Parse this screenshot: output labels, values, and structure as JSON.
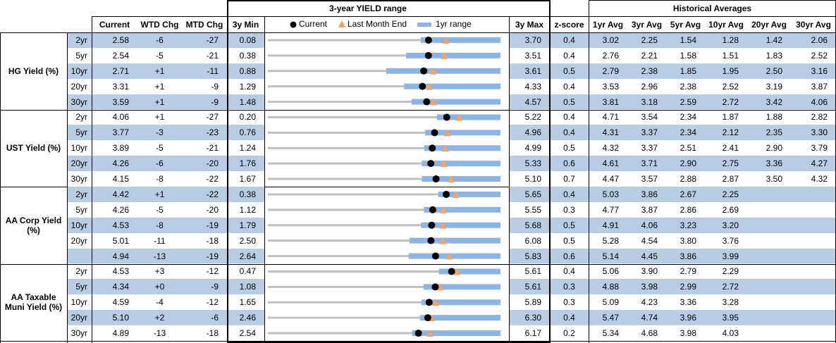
{
  "header": {
    "range_title": "3-year YIELD range",
    "hist_title": "Historical Averages",
    "columns": {
      "current": "Current",
      "wtd": "WTD Chg",
      "mtd": "MTD Chg",
      "min": "3y Min",
      "max": "3y Max",
      "z": "z-score",
      "avgs": [
        "1yr Avg",
        "3yr Avg",
        "5yr Avg",
        "10yr Avg",
        "20yr Avg",
        "30yr Avg"
      ]
    },
    "legend": {
      "current": "Current",
      "last_month_end": "Last Month End",
      "one_yr_range": "1yr range"
    }
  },
  "groups": [
    {
      "label": "HG Yield (%)",
      "rows": [
        {
          "tenor": "2yr",
          "current": "2.58",
          "wtd": "-6",
          "mtd": "-27",
          "min": "0.08",
          "max": "3.70",
          "z": "0.4",
          "avgs": [
            "3.02",
            "2.25",
            "1.54",
            "1.28",
            "1.42",
            "2.06"
          ],
          "range": {
            "low": 2.46,
            "high": 3.7,
            "last_month_end": 2.85
          }
        },
        {
          "tenor": "5yr",
          "current": "2.54",
          "wtd": "-5",
          "mtd": "-21",
          "min": "0.38",
          "max": "3.51",
          "z": "0.4",
          "avgs": [
            "2.76",
            "2.21",
            "1.58",
            "1.51",
            "1.83",
            "2.52"
          ],
          "range": {
            "low": 2.24,
            "high": 3.51,
            "last_month_end": 2.75
          }
        },
        {
          "tenor": "10yr",
          "current": "2.71",
          "wtd": "+1",
          "mtd": "-11",
          "min": "0.88",
          "max": "3.61",
          "z": "0.5",
          "avgs": [
            "2.79",
            "2.38",
            "1.85",
            "1.95",
            "2.50",
            "3.16"
          ],
          "range": {
            "low": 2.27,
            "high": 3.61,
            "last_month_end": 2.82
          }
        },
        {
          "tenor": "20yr",
          "current": "3.31",
          "wtd": "+1",
          "mtd": "-9",
          "min": "1.29",
          "max": "4.33",
          "z": "0.4",
          "avgs": [
            "3.53",
            "2.96",
            "2.38",
            "2.52",
            "3.19",
            "3.87"
          ],
          "range": {
            "low": 3.07,
            "high": 4.33,
            "last_month_end": 3.4
          }
        },
        {
          "tenor": "30yr",
          "current": "3.59",
          "wtd": "+1",
          "mtd": "-9",
          "min": "1.48",
          "max": "4.57",
          "z": "0.5",
          "avgs": [
            "3.81",
            "3.18",
            "2.59",
            "2.72",
            "3.42",
            "4.06"
          ],
          "range": {
            "low": 3.39,
            "high": 4.57,
            "last_month_end": 3.68
          }
        }
      ]
    },
    {
      "label": "UST Yield (%)",
      "rows": [
        {
          "tenor": "2yr",
          "current": "4.06",
          "wtd": "+1",
          "mtd": "-27",
          "min": "0.20",
          "max": "5.22",
          "z": "0.4",
          "avgs": [
            "4.71",
            "3.54",
            "2.34",
            "1.87",
            "1.88",
            "2.82"
          ],
          "range": {
            "low": 3.85,
            "high": 5.22,
            "last_month_end": 4.33
          }
        },
        {
          "tenor": "5yr",
          "current": "3.77",
          "wtd": "-3",
          "mtd": "-23",
          "min": "0.76",
          "max": "4.96",
          "z": "0.4",
          "avgs": [
            "4.31",
            "3.37",
            "2.34",
            "2.12",
            "2.35",
            "3.30"
          ],
          "range": {
            "low": 3.6,
            "high": 4.96,
            "last_month_end": 4.0
          }
        },
        {
          "tenor": "10yr",
          "current": "3.89",
          "wtd": "-5",
          "mtd": "-21",
          "min": "1.24",
          "max": "4.99",
          "z": "0.5",
          "avgs": [
            "4.32",
            "3.37",
            "2.51",
            "2.41",
            "2.90",
            "3.79"
          ],
          "range": {
            "low": 3.76,
            "high": 4.99,
            "last_month_end": 4.1
          }
        },
        {
          "tenor": "20yr",
          "current": "4.26",
          "wtd": "-6",
          "mtd": "-20",
          "min": "1.76",
          "max": "5.33",
          "z": "0.6",
          "avgs": [
            "4.61",
            "3.71",
            "2.90",
            "2.75",
            "3.36",
            "4.27"
          ],
          "range": {
            "low": 4.12,
            "high": 5.33,
            "last_month_end": 4.46
          }
        },
        {
          "tenor": "30yr",
          "current": "4.15",
          "wtd": "-8",
          "mtd": "-22",
          "min": "1.67",
          "max": "5.10",
          "z": "0.7",
          "avgs": [
            "4.47",
            "3.57",
            "2.88",
            "2.87",
            "3.50",
            "4.32"
          ],
          "range": {
            "low": 3.94,
            "high": 5.1,
            "last_month_end": 4.37
          }
        }
      ]
    },
    {
      "label": "AA Corp Yield (%)",
      "rows": [
        {
          "tenor": "2yr",
          "current": "4.42",
          "wtd": "+1",
          "mtd": "-22",
          "min": "0.38",
          "max": "5.65",
          "z": "0.4",
          "avgs": [
            "5.03",
            "3.86",
            "2.67",
            "2.25",
            null,
            null
          ],
          "range": {
            "low": 4.24,
            "high": 5.65,
            "last_month_end": 4.64
          }
        },
        {
          "tenor": "5yr",
          "current": "4.26",
          "wtd": "-5",
          "mtd": "-20",
          "min": "1.12",
          "max": "5.55",
          "z": "0.3",
          "avgs": [
            "4.77",
            "3.87",
            "2.86",
            "2.69",
            null,
            null
          ],
          "range": {
            "low": 4.09,
            "high": 5.55,
            "last_month_end": 4.46
          }
        },
        {
          "tenor": "10yr",
          "current": "4.53",
          "wtd": "-8",
          "mtd": "-19",
          "min": "1.79",
          "max": "5.68",
          "z": "0.5",
          "avgs": [
            "4.91",
            "4.06",
            "3.23",
            "3.20",
            null,
            null
          ],
          "range": {
            "low": 4.35,
            "high": 5.68,
            "last_month_end": 4.72
          }
        },
        {
          "tenor": "20yr",
          "current": "5.01",
          "wtd": "-11",
          "mtd": "-18",
          "min": "2.50",
          "max": "6.08",
          "z": "0.5",
          "avgs": [
            "5.28",
            "4.54",
            "3.80",
            "3.76",
            null,
            null
          ],
          "range": {
            "low": 4.68,
            "high": 6.08,
            "last_month_end": 5.19
          }
        },
        {
          "tenor": null,
          "current": "4.94",
          "wtd": "-13",
          "mtd": "-19",
          "min": "2.64",
          "max": "5.83",
          "z": "0.6",
          "avgs": [
            "5.14",
            "4.45",
            "3.86",
            "3.99",
            null,
            null
          ],
          "range": {
            "low": 4.57,
            "high": 5.83,
            "last_month_end": 5.13
          }
        }
      ]
    },
    {
      "label": "AA Taxable Muni Yield (%)",
      "rows": [
        {
          "tenor": "2yr",
          "current": "4.53",
          "wtd": "+3",
          "mtd": "-12",
          "min": "0.47",
          "max": "5.61",
          "z": "0.4",
          "avgs": [
            "5.06",
            "3.90",
            "2.79",
            "2.29",
            null,
            null
          ],
          "range": {
            "low": 4.25,
            "high": 5.61,
            "last_month_end": 4.65
          }
        },
        {
          "tenor": "5yr",
          "current": "4.34",
          "wtd": "+0",
          "mtd": "-9",
          "min": "1.08",
          "max": "5.61",
          "z": "0.3",
          "avgs": [
            "4.88",
            "3.98",
            "2.99",
            "2.72",
            null,
            null
          ],
          "range": {
            "low": 4.11,
            "high": 5.61,
            "last_month_end": 4.43
          }
        },
        {
          "tenor": "10yr",
          "current": "4.59",
          "wtd": "-4",
          "mtd": "-12",
          "min": "1.65",
          "max": "5.89",
          "z": "0.3",
          "avgs": [
            "5.09",
            "4.23",
            "3.36",
            "3.28",
            null,
            null
          ],
          "range": {
            "low": 4.45,
            "high": 5.89,
            "last_month_end": 4.71
          }
        },
        {
          "tenor": "20yr",
          "current": "5.10",
          "wtd": "+2",
          "mtd": "-6",
          "min": "2.46",
          "max": "6.30",
          "z": "0.4",
          "avgs": [
            "5.47",
            "4.74",
            "3.96",
            "3.95",
            null,
            null
          ],
          "range": {
            "low": 4.97,
            "high": 6.3,
            "last_month_end": 5.16
          }
        },
        {
          "tenor": "30yr",
          "current": "4.89",
          "wtd": "-13",
          "mtd": "-18",
          "min": "2.54",
          "max": "6.17",
          "z": "0.2",
          "avgs": [
            "5.34",
            "4.68",
            "3.98",
            "4.03",
            null,
            null
          ],
          "range": {
            "low": 4.79,
            "high": 6.17,
            "last_month_end": 5.07
          }
        }
      ]
    }
  ]
}
